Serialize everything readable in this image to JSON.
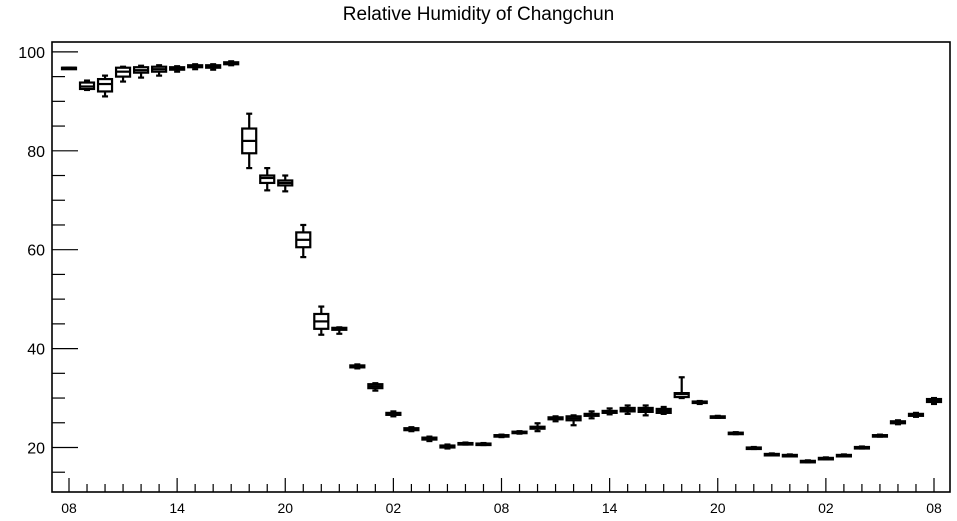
{
  "chart_data": {
    "type": "box",
    "title": "Relative Humidity of Changchun",
    "xlabel": "",
    "ylabel": "",
    "ylim": [
      11,
      102
    ],
    "yticks": [
      20,
      40,
      60,
      80,
      100
    ],
    "xtick_labels": [
      "08",
      "14",
      "20",
      "02",
      "08",
      "14",
      "20",
      "02",
      "08"
    ],
    "xtick_hours": [
      0,
      6,
      12,
      18,
      24,
      30,
      36,
      42,
      48
    ],
    "grid": false,
    "legend": "none",
    "boxes": [
      {
        "hour": 0,
        "min": 96.8,
        "q1": 96.8,
        "median": 96.8,
        "q3": 96.8,
        "max": 96.8
      },
      {
        "hour": 1,
        "min": 92.3,
        "q1": 92.5,
        "median": 93.0,
        "q3": 93.8,
        "max": 94.2
      },
      {
        "hour": 2,
        "min": 91.0,
        "q1": 92.0,
        "median": 93.5,
        "q3": 94.5,
        "max": 95.2
      },
      {
        "hour": 3,
        "min": 94.0,
        "q1": 95.0,
        "median": 96.0,
        "q3": 96.8,
        "max": 97.0
      },
      {
        "hour": 4,
        "min": 94.8,
        "q1": 95.8,
        "median": 96.3,
        "q3": 96.9,
        "max": 97.2
      },
      {
        "hour": 5,
        "min": 95.2,
        "q1": 96.0,
        "median": 96.5,
        "q3": 97.0,
        "max": 97.3
      },
      {
        "hour": 6,
        "min": 96.0,
        "q1": 96.4,
        "median": 96.6,
        "q3": 96.9,
        "max": 97.1
      },
      {
        "hour": 7,
        "min": 96.5,
        "q1": 96.9,
        "median": 97.1,
        "q3": 97.3,
        "max": 97.5
      },
      {
        "hour": 8,
        "min": 96.4,
        "q1": 96.8,
        "median": 97.0,
        "q3": 97.3,
        "max": 97.5
      },
      {
        "hour": 9,
        "min": 97.3,
        "q1": 97.5,
        "median": 97.7,
        "q3": 97.9,
        "max": 98.1
      },
      {
        "hour": 10,
        "min": 76.5,
        "q1": 79.5,
        "median": 82.0,
        "q3": 84.5,
        "max": 87.5
      },
      {
        "hour": 11,
        "min": 72.0,
        "q1": 73.5,
        "median": 74.5,
        "q3": 75.0,
        "max": 76.5
      },
      {
        "hour": 12,
        "min": 71.8,
        "q1": 73.0,
        "median": 73.5,
        "q3": 74.0,
        "max": 75.0
      },
      {
        "hour": 13,
        "min": 58.5,
        "q1": 60.5,
        "median": 62.0,
        "q3": 63.5,
        "max": 65.0
      },
      {
        "hour": 14,
        "min": 42.8,
        "q1": 44.0,
        "median": 45.5,
        "q3": 47.0,
        "max": 48.5
      },
      {
        "hour": 15,
        "min": 43.0,
        "q1": 43.8,
        "median": 44.0,
        "q3": 44.2,
        "max": 44.3
      },
      {
        "hour": 16,
        "min": 36.0,
        "q1": 36.2,
        "median": 36.4,
        "q3": 36.6,
        "max": 36.8
      },
      {
        "hour": 17,
        "min": 31.5,
        "q1": 32.0,
        "median": 32.4,
        "q3": 32.8,
        "max": 33.0
      },
      {
        "hour": 18,
        "min": 26.3,
        "q1": 26.6,
        "median": 26.8,
        "q3": 27.0,
        "max": 27.3
      },
      {
        "hour": 19,
        "min": 23.3,
        "q1": 23.5,
        "median": 23.7,
        "q3": 23.9,
        "max": 24.1
      },
      {
        "hour": 20,
        "min": 21.3,
        "q1": 21.6,
        "median": 21.8,
        "q3": 22.0,
        "max": 22.2
      },
      {
        "hour": 21,
        "min": 19.8,
        "q1": 20.0,
        "median": 20.2,
        "q3": 20.4,
        "max": 20.6
      },
      {
        "hour": 22,
        "min": 20.6,
        "q1": 20.7,
        "median": 20.8,
        "q3": 20.9,
        "max": 21.0
      },
      {
        "hour": 23,
        "min": 20.5,
        "q1": 20.6,
        "median": 20.7,
        "q3": 20.8,
        "max": 20.9
      },
      {
        "hour": 24,
        "min": 22.1,
        "q1": 22.3,
        "median": 22.4,
        "q3": 22.5,
        "max": 22.6
      },
      {
        "hour": 25,
        "min": 22.8,
        "q1": 23.0,
        "median": 23.1,
        "q3": 23.2,
        "max": 23.3
      },
      {
        "hour": 26,
        "min": 23.3,
        "q1": 23.8,
        "median": 24.0,
        "q3": 24.2,
        "max": 24.9
      },
      {
        "hour": 27,
        "min": 25.3,
        "q1": 25.7,
        "median": 25.9,
        "q3": 26.1,
        "max": 26.3
      },
      {
        "hour": 28,
        "min": 24.5,
        "q1": 25.5,
        "median": 25.9,
        "q3": 26.3,
        "max": 26.5
      },
      {
        "hour": 29,
        "min": 25.9,
        "q1": 26.4,
        "median": 26.6,
        "q3": 26.8,
        "max": 27.3
      },
      {
        "hour": 30,
        "min": 26.7,
        "q1": 27.0,
        "median": 27.2,
        "q3": 27.4,
        "max": 27.9
      },
      {
        "hour": 31,
        "min": 26.8,
        "q1": 27.3,
        "median": 27.6,
        "q3": 28.0,
        "max": 28.5
      },
      {
        "hour": 32,
        "min": 26.5,
        "q1": 27.2,
        "median": 27.6,
        "q3": 28.0,
        "max": 28.5
      },
      {
        "hour": 33,
        "min": 26.8,
        "q1": 27.0,
        "median": 27.4,
        "q3": 27.8,
        "max": 28.2
      },
      {
        "hour": 34,
        "min": 30.0,
        "q1": 30.2,
        "median": 30.8,
        "q3": 31.0,
        "max": 34.2
      },
      {
        "hour": 35,
        "min": 28.8,
        "q1": 29.0,
        "median": 29.2,
        "q3": 29.3,
        "max": 29.4
      },
      {
        "hour": 36,
        "min": 26.0,
        "q1": 26.1,
        "median": 26.2,
        "q3": 26.3,
        "max": 26.4
      },
      {
        "hour": 37,
        "min": 22.7,
        "q1": 22.8,
        "median": 22.9,
        "q3": 23.0,
        "max": 23.1
      },
      {
        "hour": 38,
        "min": 19.7,
        "q1": 19.8,
        "median": 19.9,
        "q3": 20.0,
        "max": 20.1
      },
      {
        "hour": 39,
        "min": 18.4,
        "q1": 18.5,
        "median": 18.6,
        "q3": 18.7,
        "max": 18.8
      },
      {
        "hour": 40,
        "min": 18.2,
        "q1": 18.3,
        "median": 18.4,
        "q3": 18.5,
        "max": 18.6
      },
      {
        "hour": 41,
        "min": 17.0,
        "q1": 17.1,
        "median": 17.2,
        "q3": 17.3,
        "max": 17.4
      },
      {
        "hour": 42,
        "min": 17.6,
        "q1": 17.7,
        "median": 17.8,
        "q3": 17.9,
        "max": 18.0
      },
      {
        "hour": 43,
        "min": 18.2,
        "q1": 18.3,
        "median": 18.4,
        "q3": 18.5,
        "max": 18.6
      },
      {
        "hour": 44,
        "min": 19.8,
        "q1": 19.9,
        "median": 20.0,
        "q3": 20.1,
        "max": 20.2
      },
      {
        "hour": 45,
        "min": 22.2,
        "q1": 22.3,
        "median": 22.4,
        "q3": 22.5,
        "max": 22.6
      },
      {
        "hour": 46,
        "min": 24.7,
        "q1": 24.9,
        "median": 25.1,
        "q3": 25.3,
        "max": 25.5
      },
      {
        "hour": 47,
        "min": 26.2,
        "q1": 26.4,
        "median": 26.6,
        "q3": 26.8,
        "max": 27.0
      },
      {
        "hour": 48,
        "min": 28.8,
        "q1": 29.2,
        "median": 29.5,
        "q3": 29.8,
        "max": 30.0
      }
    ]
  }
}
